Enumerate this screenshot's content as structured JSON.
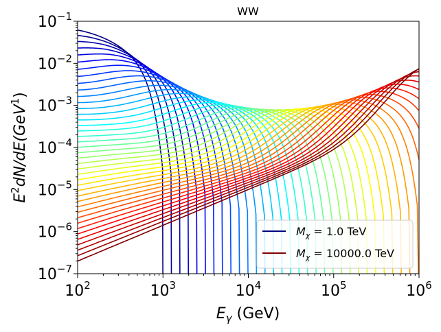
{
  "chart_data": {
    "type": "line",
    "title": "WW",
    "xlabel": "E_γ (GeV)",
    "ylabel": "E²dN/dE(GeV¹)",
    "xscale": "log",
    "yscale": "log",
    "xlim": [
      100,
      1000000
    ],
    "ylim": [
      1e-07,
      0.1
    ],
    "x_ticks": [
      {
        "base": "10",
        "exp": "2"
      },
      {
        "base": "10",
        "exp": "3"
      },
      {
        "base": "10",
        "exp": "4"
      },
      {
        "base": "10",
        "exp": "5"
      },
      {
        "base": "10",
        "exp": "6"
      }
    ],
    "y_ticks": [
      {
        "base": "10",
        "exp": "−7"
      },
      {
        "base": "10",
        "exp": "−6"
      },
      {
        "base": "10",
        "exp": "−5"
      },
      {
        "base": "10",
        "exp": "−4"
      },
      {
        "base": "10",
        "exp": "−3"
      },
      {
        "base": "10",
        "exp": "−2"
      },
      {
        "base": "10",
        "exp": "−1"
      }
    ],
    "series_count": 41,
    "colormap": "jet",
    "mass_range_tev": [
      1.0,
      10000.0
    ],
    "legend": {
      "position": "lower-right",
      "entries": [
        {
          "label": "M_χ = 1.0 TeV",
          "color": "#00007f"
        },
        {
          "label": "M_χ = 10000.0 TeV",
          "color": "#7f0000"
        }
      ]
    },
    "grid": false
  },
  "labels": {
    "title": "WW",
    "xlabel_sym": "E",
    "xlabel_sub": "γ",
    "xlabel_unit": " (GeV)",
    "ylabel_E": "E",
    "ylabel_sup1": "2",
    "ylabel_mid": "dN/dE(GeV",
    "ylabel_sup2": "1",
    "ylabel_end": ")",
    "legend1_pre": "M",
    "legend1_sub": "χ",
    "legend1_val": " = 1.0 TeV",
    "legend2_pre": "M",
    "legend2_sub": "χ",
    "legend2_val": " = 10000.0 TeV"
  }
}
